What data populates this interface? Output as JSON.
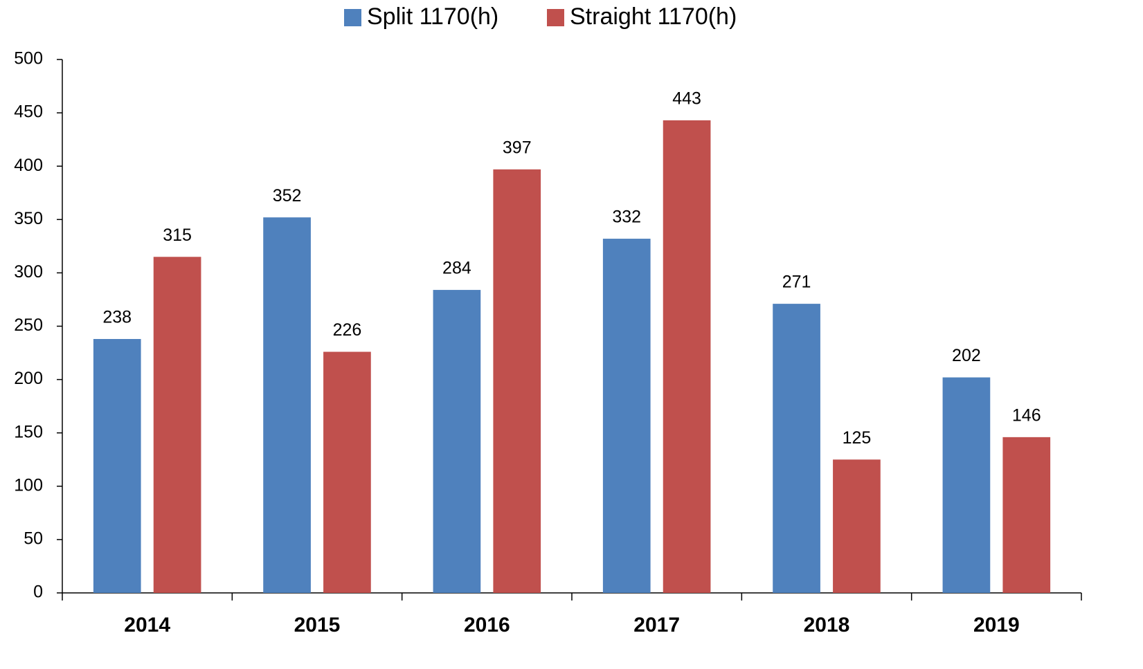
{
  "chart_data": {
    "type": "bar",
    "categories": [
      "2014",
      "2015",
      "2016",
      "2017",
      "2018",
      "2019"
    ],
    "series": [
      {
        "name": "Split 1170(h)",
        "color": "#4f81bd",
        "values": [
          238,
          352,
          284,
          332,
          271,
          202
        ]
      },
      {
        "name": "Straight 1170(h)",
        "color": "#c0504d",
        "values": [
          315,
          226,
          397,
          443,
          125,
          146
        ]
      }
    ],
    "ylim": [
      0,
      500
    ],
    "yticks": [
      0,
      50,
      100,
      150,
      200,
      250,
      300,
      350,
      400,
      450,
      500
    ],
    "legend": "top",
    "grid": false
  }
}
